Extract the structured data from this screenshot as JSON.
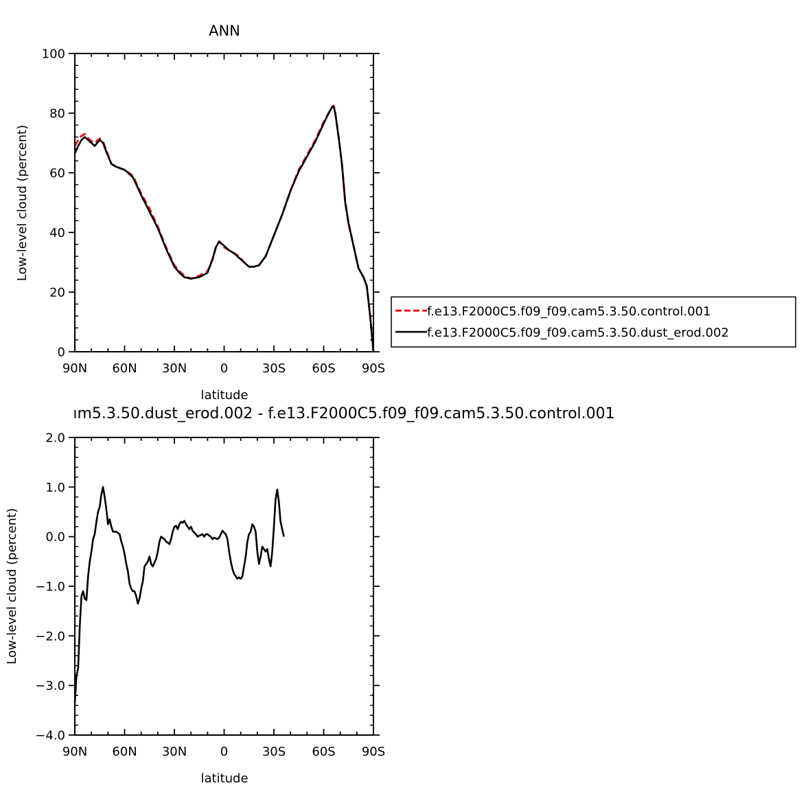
{
  "chart_data": [
    {
      "type": "line",
      "title": "ANN",
      "xlabel": "latitude",
      "ylabel": "Low-level cloud (percent)",
      "xlim": [
        90,
        -90
      ],
      "ylim": [
        0,
        100
      ],
      "x_ticks": [
        90,
        60,
        30,
        0,
        -30,
        -60,
        -90
      ],
      "x_tick_labels": [
        "90N",
        "60N",
        "30N",
        "0",
        "30S",
        "60S",
        "90S"
      ],
      "y_ticks": [
        0,
        20,
        40,
        60,
        80,
        100
      ],
      "y_tick_labels": [
        "0",
        "20",
        "40",
        "60",
        "80",
        "100"
      ],
      "legend_position": "right",
      "series": [
        {
          "name": "f.e13.F2000C5.f09_f09.cam5.3.50.control.001",
          "color": "#e8141a",
          "dash": "dashed",
          "points": [
            [
              90,
              69
            ],
            [
              87,
              72
            ],
            [
              84,
              73
            ],
            [
              81,
              71
            ],
            [
              78,
              70
            ],
            [
              75,
              71.5
            ],
            [
              73,
              70.5
            ],
            [
              70,
              66
            ],
            [
              68,
              63
            ],
            [
              65,
              62
            ],
            [
              60,
              61
            ],
            [
              55,
              59
            ],
            [
              50,
              53
            ],
            [
              45,
              48
            ],
            [
              40,
              42
            ],
            [
              35,
              35
            ],
            [
              30,
              29
            ],
            [
              27,
              27
            ],
            [
              24,
              25.5
            ],
            [
              20,
              24.5
            ],
            [
              15,
              25.5
            ],
            [
              10,
              27
            ],
            [
              7,
              31
            ],
            [
              5,
              35
            ],
            [
              3,
              37
            ],
            [
              0,
              35
            ],
            [
              -3,
              34
            ],
            [
              -6,
              33
            ],
            [
              -9,
              32
            ],
            [
              -12,
              30
            ],
            [
              -15,
              28.5
            ],
            [
              -18,
              28.5
            ],
            [
              -21,
              29
            ],
            [
              -25,
              32
            ],
            [
              -30,
              39
            ],
            [
              -35,
              46
            ],
            [
              -40,
              54
            ],
            [
              -45,
              61
            ],
            [
              -50,
              66
            ],
            [
              -55,
              71
            ],
            [
              -60,
              77
            ],
            [
              -63,
              80
            ],
            [
              -65,
              82
            ],
            [
              -66,
              82.5
            ],
            [
              -67,
              80
            ],
            [
              -69,
              72
            ],
            [
              -71,
              63
            ],
            [
              -73,
              50
            ],
            [
              -75,
              43
            ],
            [
              -77,
              38
            ],
            [
              -79,
              33
            ],
            [
              -81,
              28
            ],
            [
              -84,
              25
            ],
            [
              -86,
              22
            ],
            [
              -88,
              12
            ],
            [
              -90,
              0
            ]
          ]
        },
        {
          "name": "f.e13.F2000C5.f09_f09.cam5.3.50.dust_erod.002",
          "color": "#000000",
          "dash": "solid",
          "points": [
            [
              90,
              66.5
            ],
            [
              88,
              69
            ],
            [
              86,
              71
            ],
            [
              84,
              72
            ],
            [
              82,
              71
            ],
            [
              80,
              70
            ],
            [
              78,
              69
            ],
            [
              75,
              71
            ],
            [
              73,
              70
            ],
            [
              71,
              67
            ],
            [
              68,
              63
            ],
            [
              65,
              62
            ],
            [
              60,
              61
            ],
            [
              55,
              58.5
            ],
            [
              50,
              52.5
            ],
            [
              45,
              47
            ],
            [
              40,
              41.5
            ],
            [
              35,
              34.5
            ],
            [
              30,
              28.5
            ],
            [
              27,
              26.5
            ],
            [
              24,
              25
            ],
            [
              20,
              24.5
            ],
            [
              15,
              25
            ],
            [
              10,
              26.5
            ],
            [
              7,
              31
            ],
            [
              5,
              35
            ],
            [
              3,
              37
            ],
            [
              0,
              35.5
            ],
            [
              -3,
              34
            ],
            [
              -6,
              33
            ],
            [
              -9,
              31.5
            ],
            [
              -12,
              30
            ],
            [
              -15,
              28.5
            ],
            [
              -18,
              28.5
            ],
            [
              -21,
              29
            ],
            [
              -25,
              32
            ],
            [
              -30,
              39
            ],
            [
              -35,
              46
            ],
            [
              -40,
              54
            ],
            [
              -45,
              60.5
            ],
            [
              -50,
              65.5
            ],
            [
              -55,
              70.5
            ],
            [
              -60,
              76.5
            ],
            [
              -63,
              80
            ],
            [
              -65,
              82
            ],
            [
              -66,
              82.3
            ],
            [
              -67,
              80
            ],
            [
              -69,
              72
            ],
            [
              -71,
              63
            ],
            [
              -73,
              50
            ],
            [
              -75,
              43
            ],
            [
              -77,
              38
            ],
            [
              -79,
              33
            ],
            [
              -81,
              28
            ],
            [
              -84,
              25
            ],
            [
              -86,
              22
            ],
            [
              -88,
              12
            ],
            [
              -90,
              0
            ]
          ]
        }
      ]
    },
    {
      "type": "line",
      "title": "ım5.3.50.dust_erod.002 - f.e13.F2000C5.f09_f09.cam5.3.50.control.001",
      "xlabel": "latitude",
      "ylabel": "Low-level cloud (percent)",
      "xlim": [
        90,
        -90
      ],
      "ylim": [
        -4,
        2
      ],
      "x_ticks": [
        90,
        60,
        30,
        0,
        -30,
        -60,
        -90
      ],
      "x_tick_labels": [
        "90N",
        "60N",
        "30N",
        "0",
        "30S",
        "60S",
        "90S"
      ],
      "y_ticks": [
        -4,
        -3,
        -2,
        -1,
        0,
        1,
        2
      ],
      "y_tick_labels": [
        "−4.0",
        "−3.0",
        "−2.0",
        "−1.0",
        "0.0",
        "1.0",
        "2.0"
      ],
      "series": [
        {
          "color": "#000000",
          "dash": "solid",
          "points": [
            [
              90,
              -3.35
            ],
            [
              89,
              -2.8
            ],
            [
              88,
              -2.65
            ],
            [
              87,
              -1.8
            ],
            [
              86,
              -1.2
            ],
            [
              85,
              -1.1
            ],
            [
              84,
              -1.25
            ],
            [
              83,
              -1.28
            ],
            [
              82,
              -0.8
            ],
            [
              81,
              -0.5
            ],
            [
              80,
              -0.3
            ],
            [
              79,
              -0.05
            ],
            [
              78,
              0.05
            ],
            [
              77,
              0.3
            ],
            [
              76,
              0.5
            ],
            [
              75,
              0.6
            ],
            [
              74,
              0.85
            ],
            [
              73,
              1.0
            ],
            [
              72,
              0.8
            ],
            [
              71,
              0.55
            ],
            [
              70,
              0.25
            ],
            [
              69,
              0.35
            ],
            [
              68,
              0.2
            ],
            [
              67,
              0.1
            ],
            [
              65,
              0.1
            ],
            [
              63,
              0.05
            ],
            [
              62,
              -0.1
            ],
            [
              61,
              -0.2
            ],
            [
              60,
              -0.35
            ],
            [
              59,
              -0.55
            ],
            [
              58,
              -0.7
            ],
            [
              57,
              -0.95
            ],
            [
              56,
              -1.05
            ],
            [
              55,
              -1.1
            ],
            [
              54,
              -1.1
            ],
            [
              53,
              -1.2
            ],
            [
              52,
              -1.35
            ],
            [
              51,
              -1.25
            ],
            [
              50,
              -1.05
            ],
            [
              49,
              -0.9
            ],
            [
              48,
              -0.6
            ],
            [
              47,
              -0.55
            ],
            [
              46,
              -0.5
            ],
            [
              45,
              -0.4
            ],
            [
              44,
              -0.55
            ],
            [
              43,
              -0.6
            ],
            [
              41,
              -0.45
            ],
            [
              40,
              -0.3
            ],
            [
              39,
              -0.1
            ],
            [
              38,
              0.0
            ],
            [
              36,
              -0.05
            ],
            [
              35,
              -0.1
            ],
            [
              34,
              -0.12
            ],
            [
              33,
              -0.15
            ],
            [
              32,
              -0.05
            ],
            [
              31,
              0.1
            ],
            [
              30,
              0.2
            ],
            [
              29,
              0.22
            ],
            [
              28,
              0.15
            ],
            [
              27,
              0.25
            ],
            [
              26,
              0.3
            ],
            [
              25,
              0.28
            ],
            [
              24,
              0.32
            ],
            [
              23,
              0.25
            ],
            [
              22,
              0.2
            ],
            [
              21,
              0.15
            ],
            [
              20,
              0.2
            ],
            [
              19,
              0.12
            ],
            [
              18,
              0.08
            ],
            [
              17,
              0.05
            ],
            [
              16,
              0.0
            ],
            [
              15,
              0.02
            ],
            [
              13,
              0.05
            ],
            [
              12,
              0.0
            ],
            [
              11,
              0.05
            ],
            [
              10,
              0.05
            ],
            [
              9,
              0.02
            ],
            [
              8,
              0.0
            ],
            [
              7,
              -0.05
            ],
            [
              6,
              -0.02
            ],
            [
              4,
              -0.05
            ],
            [
              3,
              -0.02
            ],
            [
              2,
              0.05
            ],
            [
              1,
              0.12
            ],
            [
              0,
              0.08
            ],
            [
              -1,
              0.05
            ],
            [
              -2,
              -0.05
            ],
            [
              -3,
              -0.3
            ],
            [
              -4,
              -0.5
            ],
            [
              -5,
              -0.65
            ],
            [
              -6,
              -0.75
            ],
            [
              -7,
              -0.8
            ],
            [
              -8,
              -0.85
            ],
            [
              -9,
              -0.82
            ],
            [
              -10,
              -0.85
            ],
            [
              -11,
              -0.8
            ],
            [
              -12,
              -0.6
            ],
            [
              -13,
              -0.4
            ],
            [
              -14,
              -0.1
            ],
            [
              -15,
              0.05
            ],
            [
              -16,
              0.1
            ],
            [
              -17,
              0.25
            ],
            [
              -18,
              0.2
            ],
            [
              -19,
              0.1
            ],
            [
              -20,
              -0.3
            ],
            [
              -21,
              -0.55
            ],
            [
              -22,
              -0.4
            ],
            [
              -23,
              -0.2
            ],
            [
              -24,
              -0.25
            ],
            [
              -25,
              -0.3
            ],
            [
              -26,
              -0.25
            ],
            [
              -27,
              -0.45
            ],
            [
              -28,
              -0.6
            ],
            [
              -29,
              -0.3
            ],
            [
              -30,
              0.2
            ],
            [
              -31,
              0.75
            ],
            [
              -32,
              0.95
            ],
            [
              -33,
              0.7
            ],
            [
              -34,
              0.3
            ],
            [
              -35,
              0.15
            ],
            [
              -36,
              0.0
            ]
          ]
        }
      ]
    }
  ]
}
